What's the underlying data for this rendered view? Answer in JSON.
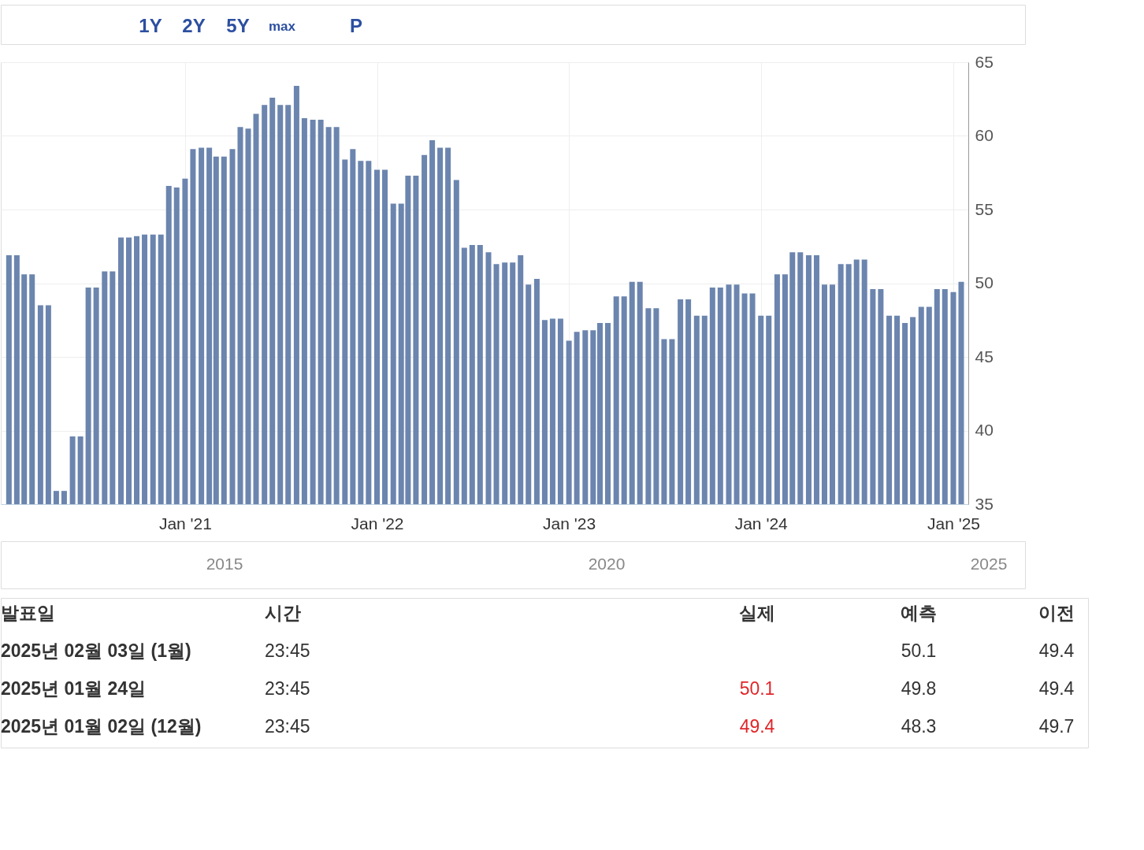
{
  "chart_data": {
    "type": "bar",
    "x": [
      "2020-02-01",
      "2020-02-16",
      "2020-03-01",
      "2020-03-16",
      "2020-04-01",
      "2020-04-16",
      "2020-05-01",
      "2020-05-16",
      "2020-06-01",
      "2020-06-16",
      "2020-07-01",
      "2020-07-16",
      "2020-08-01",
      "2020-08-16",
      "2020-09-01",
      "2020-09-16",
      "2020-10-01",
      "2020-10-16",
      "2020-11-01",
      "2020-11-16",
      "2020-12-01",
      "2020-12-16",
      "2021-01-01",
      "2021-01-16",
      "2021-02-01",
      "2021-02-16",
      "2021-03-01",
      "2021-03-16",
      "2021-04-01",
      "2021-04-16",
      "2021-05-01",
      "2021-05-16",
      "2021-06-01",
      "2021-06-16",
      "2021-07-01",
      "2021-07-16",
      "2021-08-01",
      "2021-08-16",
      "2021-09-01",
      "2021-09-16",
      "2021-10-01",
      "2021-10-16",
      "2021-11-01",
      "2021-11-16",
      "2021-12-01",
      "2021-12-16",
      "2022-01-01",
      "2022-01-16",
      "2022-02-01",
      "2022-02-16",
      "2022-03-01",
      "2022-03-16",
      "2022-04-01",
      "2022-04-16",
      "2022-05-01",
      "2022-05-16",
      "2022-06-01",
      "2022-06-16",
      "2022-07-01",
      "2022-07-16",
      "2022-08-01",
      "2022-08-16",
      "2022-09-01",
      "2022-09-16",
      "2022-10-01",
      "2022-10-16",
      "2022-11-01",
      "2022-11-16",
      "2022-12-01",
      "2022-12-16",
      "2023-01-01",
      "2023-01-16",
      "2023-02-01",
      "2023-02-16",
      "2023-03-01",
      "2023-03-16",
      "2023-04-01",
      "2023-04-16",
      "2023-05-01",
      "2023-05-16",
      "2023-06-01",
      "2023-06-16",
      "2023-07-01",
      "2023-07-16",
      "2023-08-01",
      "2023-08-16",
      "2023-09-01",
      "2023-09-16",
      "2023-10-01",
      "2023-10-16",
      "2023-11-01",
      "2023-11-16",
      "2023-12-01",
      "2023-12-16",
      "2024-01-01",
      "2024-01-16",
      "2024-02-01",
      "2024-02-16",
      "2024-03-01",
      "2024-03-16",
      "2024-04-01",
      "2024-04-16",
      "2024-05-01",
      "2024-05-16",
      "2024-06-01",
      "2024-06-16",
      "2024-07-01",
      "2024-07-16",
      "2024-08-01",
      "2024-08-16",
      "2024-09-01",
      "2024-09-16",
      "2024-10-01",
      "2024-10-16",
      "2024-11-01",
      "2024-11-16",
      "2024-12-01",
      "2024-12-16",
      "2025-01-01",
      "2025-01-16"
    ],
    "values": [
      51.9,
      51.9,
      50.6,
      50.6,
      48.5,
      48.5,
      35.9,
      35.9,
      39.6,
      39.6,
      49.7,
      49.7,
      50.8,
      50.8,
      53.1,
      53.1,
      53.2,
      53.3,
      53.3,
      53.3,
      56.6,
      56.5,
      57.1,
      59.1,
      59.2,
      59.2,
      58.6,
      58.6,
      59.1,
      60.6,
      60.5,
      61.5,
      62.1,
      62.6,
      62.1,
      62.1,
      63.4,
      61.2,
      61.1,
      61.1,
      60.6,
      60.6,
      58.4,
      59.1,
      58.3,
      58.3,
      57.7,
      57.7,
      55.4,
      55.4,
      57.3,
      57.3,
      58.7,
      59.7,
      59.2,
      59.2,
      57.0,
      52.4,
      52.6,
      52.6,
      52.1,
      51.3,
      51.4,
      51.4,
      51.9,
      49.9,
      50.3,
      47.5,
      47.6,
      47.6,
      46.1,
      46.7,
      46.8,
      46.8,
      47.3,
      47.3,
      49.1,
      49.1,
      50.1,
      50.1,
      48.3,
      48.3,
      46.2,
      46.2,
      48.9,
      48.9,
      47.8,
      47.8,
      49.7,
      49.7,
      49.9,
      49.9,
      49.3,
      49.3,
      47.8,
      47.8,
      50.6,
      50.6,
      52.1,
      52.1,
      51.9,
      51.9,
      49.9,
      49.9,
      51.3,
      51.3,
      51.6,
      51.6,
      49.6,
      49.6,
      47.8,
      47.8,
      47.3,
      47.7,
      48.4,
      48.4,
      49.6,
      49.6,
      49.4,
      50.1
    ],
    "color": "#6b85ae",
    "xlim": [
      "2020-01-24",
      "2025-01-22"
    ],
    "xticks": [
      {
        "value": "2021-01-01",
        "label": "Jan '21"
      },
      {
        "value": "2022-01-01",
        "label": "Jan '22"
      },
      {
        "value": "2023-01-01",
        "label": "Jan '23"
      },
      {
        "value": "2024-01-01",
        "label": "Jan '24"
      },
      {
        "value": "2025-01-01",
        "label": "Jan '25"
      }
    ],
    "ylim": [
      35,
      65
    ],
    "yticks": [
      35,
      40,
      45,
      50,
      55,
      60,
      65
    ],
    "grid": true,
    "annotations": [
      "1Y",
      "2Y",
      "5Y",
      "max",
      "P",
      "2015",
      "2020",
      "2025",
      "발표일",
      "시간",
      "실제",
      "예측",
      "이전",
      "2025년 02월 03일 (1월)",
      "23:45",
      "50.1",
      "49.4",
      "2025년 01월 24일",
      "23:45",
      "50.1",
      "49.8",
      "49.4",
      "2025년 01월 02일 (12월)",
      "23:45",
      "49.4",
      "48.3",
      "49.7"
    ]
  }
}
